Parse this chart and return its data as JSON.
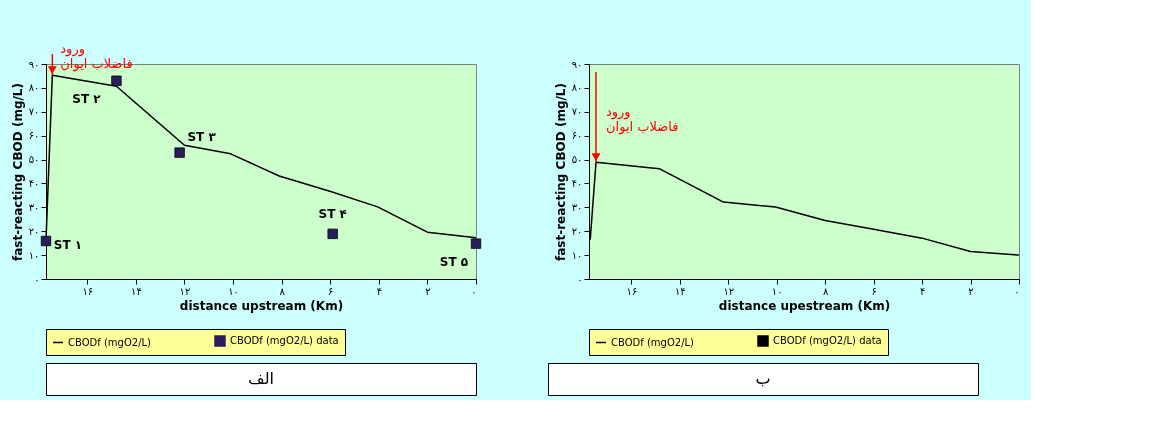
{
  "chart_data": [
    {
      "type": "line",
      "xlabel": "distance upstream (Km)",
      "ylabel": "fast-reacting CBOD (mg/L)",
      "xlim": [
        17.7,
        0
      ],
      "ylim": [
        0,
        90
      ],
      "xticks": [
        {
          "value": 16,
          "label": "۱۶"
        },
        {
          "value": 14,
          "label": "۱۴"
        },
        {
          "value": 12,
          "label": "۱۲"
        },
        {
          "value": 10,
          "label": "۱۰"
        },
        {
          "value": 8,
          "label": "۸"
        },
        {
          "value": 6,
          "label": "۶"
        },
        {
          "value": 4,
          "label": "۴"
        },
        {
          "value": 2,
          "label": "۲"
        },
        {
          "value": 0,
          "label": "۰"
        }
      ],
      "yticks": [
        {
          "value": 0,
          "label": "۰"
        },
        {
          "value": 10,
          "label": "۱۰"
        },
        {
          "value": 20,
          "label": "۲۰"
        },
        {
          "value": 30,
          "label": "۳۰"
        },
        {
          "value": 40,
          "label": "۴۰"
        },
        {
          "value": 50,
          "label": "۵۰"
        },
        {
          "value": 60,
          "label": "۶۰"
        },
        {
          "value": 70,
          "label": "۷۰"
        },
        {
          "value": 80,
          "label": "۸۰"
        },
        {
          "value": 90,
          "label": "۹۰"
        }
      ],
      "grid": false,
      "legend": "bottom",
      "series": [
        {
          "name": "CBODf (mgO2/L)",
          "color": "#000000",
          "x": [
            17.7,
            17.44,
            14.8,
            12.0,
            10.1,
            8.1,
            5.95,
            4.05,
            2.0,
            0
          ],
          "values": [
            16,
            85.3,
            80.7,
            56,
            52.4,
            43.1,
            36.5,
            30.2,
            19.6,
            17.3
          ]
        },
        {
          "name": "CBODf (mgO2/L) data",
          "type": "scatter",
          "marker": "square",
          "color": "#2a1f5c",
          "x": [
            17.7,
            14.8,
            12.2,
            5.9,
            0
          ],
          "values": [
            15.9,
            83,
            52.9,
            18.9,
            14.8
          ],
          "value_labels": [
            "ST ۱",
            "ST ۲",
            "ST ۳",
            "ST ۴",
            "ST ۵"
          ]
        }
      ],
      "annotations": [
        {
          "text": "ورود\nفاضلاب ایوان",
          "x": 17.44,
          "y": 85.3
        },
        "الف"
      ]
    },
    {
      "type": "line",
      "xlabel": "distance upestream (Km)",
      "ylabel": "fast-reacting CBOD (mg/L)",
      "xlim": [
        17.75,
        0
      ],
      "ylim": [
        0,
        90
      ],
      "xticks": [
        {
          "value": 16,
          "label": "۱۶"
        },
        {
          "value": 14,
          "label": "۱۴"
        },
        {
          "value": 12,
          "label": "۱۲"
        },
        {
          "value": 10,
          "label": "۱۰"
        },
        {
          "value": 8,
          "label": "۸"
        },
        {
          "value": 6,
          "label": "۶"
        },
        {
          "value": 4,
          "label": "۴"
        },
        {
          "value": 2,
          "label": "۲"
        },
        {
          "value": 0,
          "label": "۰"
        }
      ],
      "yticks": [
        {
          "value": 0,
          "label": "۰"
        },
        {
          "value": 10,
          "label": "۱۰"
        },
        {
          "value": 20,
          "label": "۲۰"
        },
        {
          "value": 30,
          "label": "۳۰"
        },
        {
          "value": 40,
          "label": "۴۰"
        },
        {
          "value": 50,
          "label": "۵۰"
        },
        {
          "value": 60,
          "label": "۶۰"
        },
        {
          "value": 70,
          "label": "۷۰"
        },
        {
          "value": 80,
          "label": "۸۰"
        },
        {
          "value": 90,
          "label": "۹۰"
        }
      ],
      "grid": false,
      "legend": "bottom",
      "series": [
        {
          "name": "CBODf (mgO2/L)",
          "color": "#000000",
          "x": [
            17.7,
            17.46,
            14.85,
            12.2,
            10.05,
            8.0,
            6.0,
            4.0,
            2.0,
            0
          ],
          "values": [
            16.5,
            48.9,
            46.2,
            32.2,
            30.1,
            24.5,
            20.8,
            17.1,
            11.5,
            10.0
          ]
        },
        {
          "name": "CBODf (mgO2/L) data",
          "type": "scatter",
          "marker": "square",
          "color": "#000000"
        }
      ],
      "annotations": [
        {
          "text": "ورود\nفاضلاب ایوان",
          "x": 17.46,
          "y": 48.9
        },
        "ب"
      ]
    }
  ]
}
